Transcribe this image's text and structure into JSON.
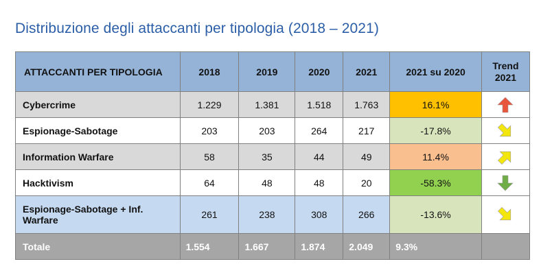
{
  "header": {
    "title": "Distribuzione degli attaccanti per tipologia (2018 – 2021)"
  },
  "table": {
    "columns": [
      "ATTACCANTI PER TIPOLOGIA",
      "2018",
      "2019",
      "2020",
      "2021",
      "2021 su 2020",
      "Trend 2021"
    ],
    "rows": [
      [
        "Cybercrime",
        "1.229",
        "1.381",
        "1.518",
        "1.763",
        "16.1%"
      ],
      [
        "Espionage-Sabotage",
        "203",
        "203",
        "264",
        "217",
        "-17.8%"
      ],
      [
        "Information Warfare",
        "58",
        "35",
        "44",
        "49",
        "11.4%"
      ],
      [
        "Hacktivism",
        "64",
        "48",
        "48",
        "20",
        "-58.3%"
      ],
      [
        "Espionage-Sabotage + Inf. Warfare",
        "261",
        "238",
        "308",
        "266",
        "-13.6%"
      ],
      [
        "Totale",
        "1.554",
        "1.667",
        "1.874",
        "2.049",
        "9.3%"
      ]
    ]
  }
}
